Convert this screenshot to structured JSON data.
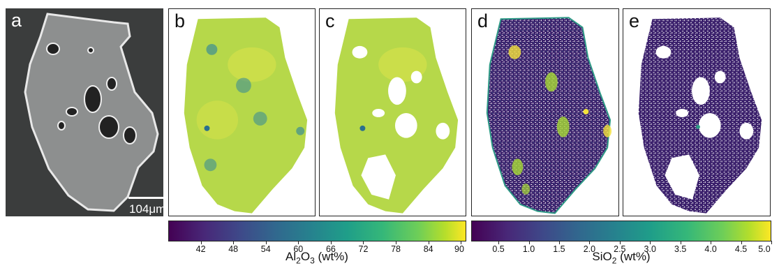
{
  "panels": [
    {
      "label": "a"
    },
    {
      "label": "b"
    },
    {
      "label": "c"
    },
    {
      "label": "d"
    },
    {
      "label": "e"
    }
  ],
  "scale_bar": {
    "text": "104μm"
  },
  "colorbars": {
    "al2o3": {
      "colormap": "viridis",
      "min": 36,
      "max": 91,
      "ticks": [
        "42",
        "48",
        "54",
        "60",
        "66",
        "72",
        "78",
        "84",
        "90"
      ],
      "tick_values": [
        42,
        48,
        54,
        60,
        66,
        72,
        78,
        84,
        90
      ],
      "label_main": "Al",
      "label_sub1": "2",
      "label_mid": "O",
      "label_sub2": "3",
      "label_unit": " (wt%)"
    },
    "sio2": {
      "colormap": "viridis",
      "min": 0.05,
      "max": 5.0,
      "ticks": [
        "0.5",
        "1.0",
        "1.5",
        "2.0",
        "2.5",
        "3.0",
        "3.5",
        "4.0",
        "4.5",
        "5.0"
      ],
      "tick_values": [
        0.5,
        1.0,
        1.5,
        2.0,
        2.5,
        3.0,
        3.5,
        4.0,
        4.5,
        5.0
      ],
      "label_main": "SiO",
      "label_sub1": "2",
      "label_unit": " (wt%)"
    }
  },
  "colors": {
    "map_fill": "#b6d84a",
    "map_fill_light": "#d4e14a",
    "map_hotspot": "#3d8f93",
    "sparse_base": "#3a1f6b",
    "sparse_hot": "#f4e13b",
    "sem_background": "#3b3d3d",
    "sem_grain": "#8d8f8f"
  }
}
